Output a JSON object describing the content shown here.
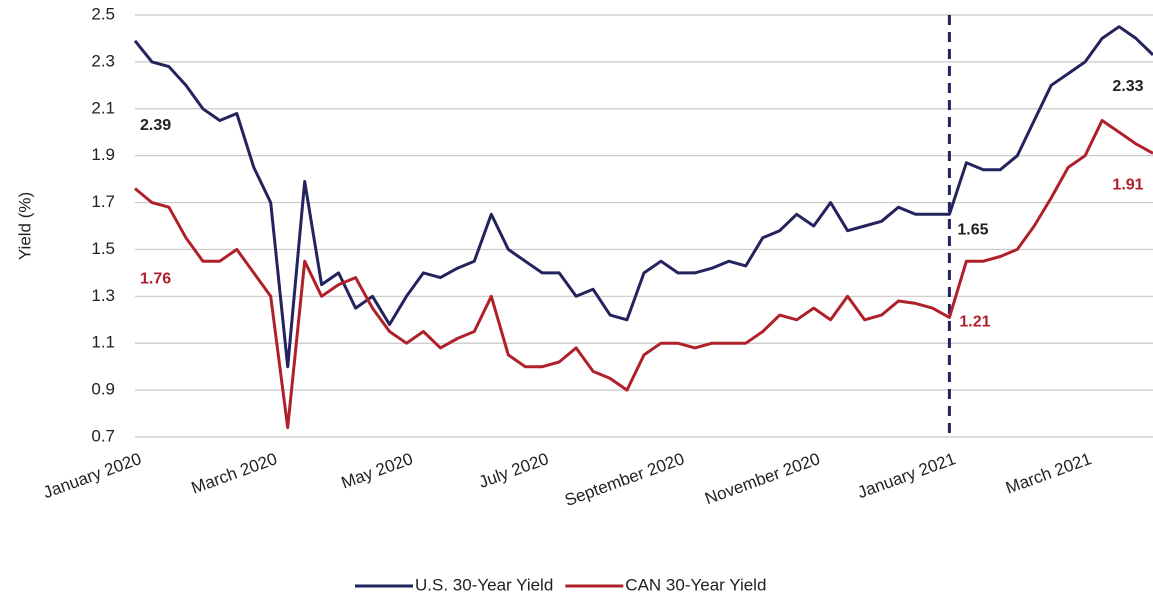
{
  "chart_data": {
    "type": "line",
    "y_label": "Yield (%)",
    "categories": [
      "January 2020",
      null,
      null,
      null,
      null,
      null,
      null,
      null,
      "March 2020",
      null,
      null,
      null,
      null,
      null,
      null,
      null,
      "May 2020",
      null,
      null,
      null,
      null,
      null,
      null,
      null,
      "July 2020",
      null,
      null,
      null,
      null,
      null,
      null,
      null,
      "September 2020",
      null,
      null,
      null,
      null,
      null,
      null,
      null,
      "November 2020",
      null,
      null,
      null,
      null,
      null,
      null,
      null,
      "January 2021",
      null,
      null,
      null,
      null,
      null,
      null,
      null,
      "March 2021",
      null,
      null,
      null,
      null
    ],
    "series": [
      {
        "name": "U.S. 30-Year Yield",
        "color": "#23235e",
        "values": [
          2.39,
          2.3,
          2.28,
          2.2,
          2.1,
          2.05,
          2.08,
          1.85,
          1.7,
          1.0,
          1.79,
          1.35,
          1.4,
          1.25,
          1.3,
          1.18,
          1.3,
          1.4,
          1.38,
          1.42,
          1.45,
          1.65,
          1.5,
          1.45,
          1.4,
          1.4,
          1.3,
          1.33,
          1.22,
          1.2,
          1.4,
          1.45,
          1.4,
          1.4,
          1.42,
          1.45,
          1.43,
          1.55,
          1.58,
          1.65,
          1.6,
          1.7,
          1.58,
          1.6,
          1.62,
          1.68,
          1.65,
          1.65,
          1.65,
          1.87,
          1.84,
          1.84,
          1.9,
          2.05,
          2.2,
          2.25,
          2.3,
          2.4,
          2.45,
          2.4,
          2.33
        ],
        "value_labels": [
          "2.39",
          null,
          null,
          null,
          null,
          null,
          null,
          null,
          null,
          null,
          null,
          null,
          null,
          null,
          null,
          null,
          null,
          null,
          null,
          null,
          null,
          null,
          null,
          null,
          null,
          null,
          null,
          null,
          null,
          null,
          null,
          null,
          null,
          null,
          null,
          null,
          null,
          null,
          null,
          null,
          null,
          null,
          null,
          null,
          null,
          null,
          null,
          null,
          "1.65",
          null,
          null,
          null,
          null,
          null,
          null,
          null,
          null,
          null,
          null,
          null,
          "2.33"
        ]
      },
      {
        "name": "CAN 30-Year Yield",
        "color": "#b0202a",
        "values": [
          1.76,
          1.7,
          1.68,
          1.55,
          1.45,
          1.45,
          1.5,
          1.4,
          1.3,
          0.74,
          1.45,
          1.3,
          1.35,
          1.38,
          1.25,
          1.15,
          1.1,
          1.15,
          1.08,
          1.12,
          1.15,
          1.3,
          1.05,
          1.0,
          1.0,
          1.02,
          1.08,
          0.98,
          0.95,
          0.9,
          1.05,
          1.1,
          1.1,
          1.08,
          1.1,
          1.1,
          1.1,
          1.15,
          1.22,
          1.2,
          1.25,
          1.2,
          1.3,
          1.2,
          1.22,
          1.28,
          1.27,
          1.25,
          1.21,
          1.45,
          1.45,
          1.47,
          1.5,
          1.6,
          1.72,
          1.85,
          1.9,
          2.05,
          2.0,
          1.95,
          1.91
        ],
        "value_labels": [
          "1.76",
          null,
          null,
          null,
          null,
          null,
          null,
          null,
          null,
          null,
          null,
          null,
          null,
          null,
          null,
          null,
          null,
          null,
          null,
          null,
          null,
          null,
          null,
          null,
          null,
          null,
          null,
          null,
          null,
          null,
          null,
          null,
          null,
          null,
          null,
          null,
          null,
          null,
          null,
          null,
          null,
          null,
          null,
          null,
          null,
          null,
          null,
          null,
          "1.21",
          null,
          null,
          null,
          null,
          null,
          null,
          null,
          null,
          null,
          null,
          null,
          "1.91"
        ]
      }
    ],
    "vline": "January 2021",
    "ylim": [
      0.7,
      2.5
    ],
    "yticks": [
      0.7,
      0.9,
      1.1,
      1.3,
      1.5,
      1.7,
      1.9,
      2.1,
      2.3,
      2.5
    ],
    "grid": true
  }
}
